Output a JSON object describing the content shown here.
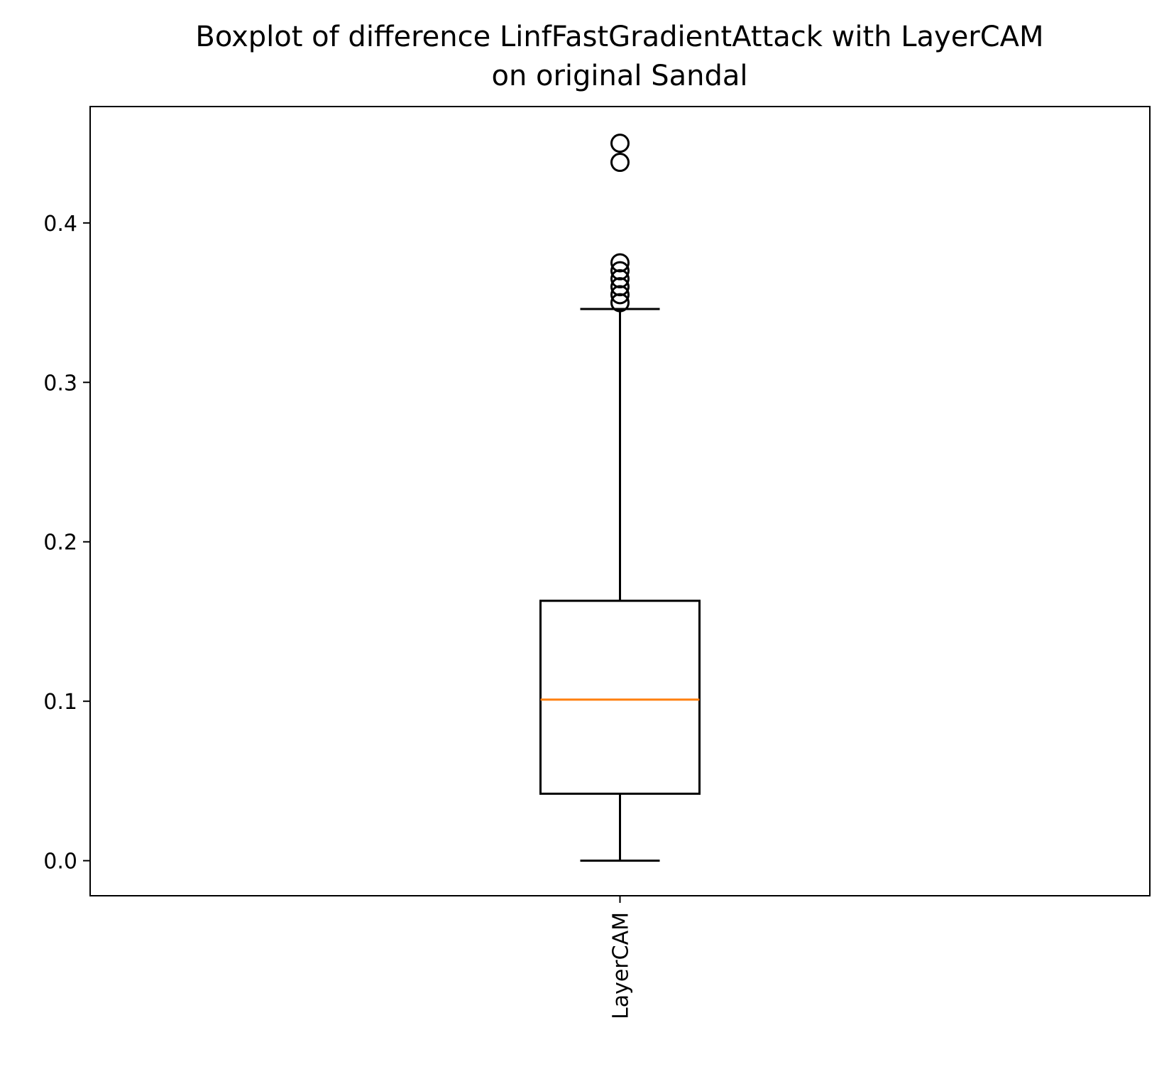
{
  "chart_data": {
    "type": "box",
    "title": "Boxplot of difference LinfFastGradientAttack with LayerCAM on original Sandal",
    "title_lines": [
      "Boxplot of difference LinfFastGradientAttack with LayerCAM",
      "on original Sandal"
    ],
    "xlabel": "",
    "ylabel": "",
    "categories": [
      "LayerCAM"
    ],
    "ylim": [
      -0.022,
      0.473
    ],
    "yticks": [
      0.0,
      0.1,
      0.2,
      0.3,
      0.4
    ],
    "ytick_labels": [
      "0.0",
      "0.1",
      "0.2",
      "0.3",
      "0.4"
    ],
    "grid": false,
    "boxes": [
      {
        "category": "LayerCAM",
        "whisker_low": 0.0,
        "q1": 0.042,
        "median": 0.101,
        "q3": 0.163,
        "whisker_high": 0.346,
        "outliers": [
          0.35,
          0.355,
          0.36,
          0.365,
          0.37,
          0.375,
          0.438,
          0.45
        ]
      }
    ],
    "colors": {
      "box": "#000000",
      "median": "#ff7f0e",
      "outlier": "#000000"
    }
  }
}
